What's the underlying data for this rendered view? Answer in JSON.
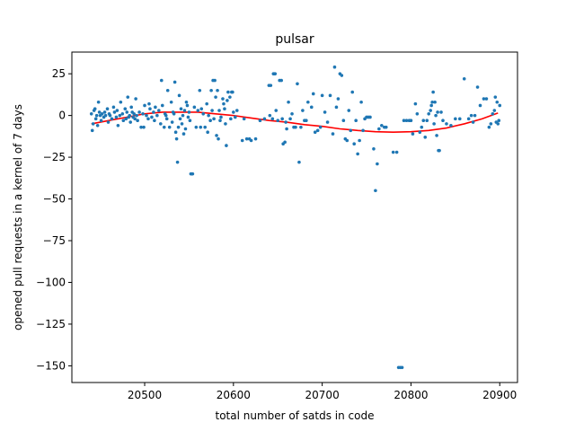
{
  "chart_data": {
    "type": "scatter",
    "title": "pulsar",
    "xlabel": "total number of satds in code",
    "ylabel": "opened pull requests in a kernel of 7 days",
    "xlim": [
      20418,
      20920
    ],
    "ylim": [
      -160,
      38
    ],
    "xticks": [
      20500,
      20600,
      20700,
      20800,
      20900
    ],
    "yticks": [
      25,
      0,
      -25,
      -50,
      -75,
      -100,
      -125,
      -150
    ],
    "grid": false,
    "point_color": "#1f77b4",
    "fit_color": "#ff0000",
    "points": [
      [
        20440,
        1
      ],
      [
        20441,
        -9
      ],
      [
        20442,
        -5
      ],
      [
        20443,
        3
      ],
      [
        20444,
        4
      ],
      [
        20445,
        -2
      ],
      [
        20446,
        0
      ],
      [
        20447,
        -6
      ],
      [
        20448,
        8
      ],
      [
        20449,
        2
      ],
      [
        20450,
        0
      ],
      [
        20451,
        -3
      ],
      [
        20452,
        1
      ],
      [
        20454,
        -1
      ],
      [
        20455,
        2
      ],
      [
        20456,
        0
      ],
      [
        20458,
        4
      ],
      [
        20459,
        -4
      ],
      [
        20460,
        1
      ],
      [
        20461,
        0
      ],
      [
        20463,
        -2
      ],
      [
        20465,
        5
      ],
      [
        20466,
        2
      ],
      [
        20468,
        -1
      ],
      [
        20469,
        3
      ],
      [
        20470,
        -6
      ],
      [
        20472,
        0
      ],
      [
        20473,
        8
      ],
      [
        20475,
        1
      ],
      [
        20476,
        -3
      ],
      [
        20478,
        4
      ],
      [
        20479,
        -2
      ],
      [
        20480,
        2
      ],
      [
        20481,
        11
      ],
      [
        20482,
        -1
      ],
      [
        20483,
        0
      ],
      [
        20484,
        -4
      ],
      [
        20485,
        5
      ],
      [
        20486,
        2
      ],
      [
        20487,
        -1
      ],
      [
        20488,
        1
      ],
      [
        20489,
        -2
      ],
      [
        20490,
        10
      ],
      [
        20491,
        0
      ],
      [
        20492,
        -3
      ],
      [
        20494,
        2
      ],
      [
        20496,
        -7
      ],
      [
        20498,
        1
      ],
      [
        20499,
        -7
      ],
      [
        20500,
        6
      ],
      [
        20502,
        0
      ],
      [
        20504,
        -2
      ],
      [
        20505,
        7
      ],
      [
        20506,
        4
      ],
      [
        20508,
        -1
      ],
      [
        20510,
        2
      ],
      [
        20511,
        -3
      ],
      [
        20512,
        5
      ],
      [
        20514,
        0
      ],
      [
        20516,
        3
      ],
      [
        20518,
        -5
      ],
      [
        20519,
        21
      ],
      [
        20520,
        6
      ],
      [
        20522,
        -7
      ],
      [
        20523,
        1
      ],
      [
        20524,
        0
      ],
      [
        20525,
        -2
      ],
      [
        20526,
        15
      ],
      [
        20528,
        -7
      ],
      [
        20530,
        8
      ],
      [
        20531,
        -4
      ],
      [
        20532,
        2
      ],
      [
        20533,
        1
      ],
      [
        20534,
        20
      ],
      [
        20535,
        -10
      ],
      [
        20536,
        -14
      ],
      [
        20537,
        -28
      ],
      [
        20538,
        -7
      ],
      [
        20539,
        12
      ],
      [
        20540,
        -2
      ],
      [
        20541,
        4
      ],
      [
        20542,
        -5
      ],
      [
        20543,
        0
      ],
      [
        20544,
        -11
      ],
      [
        20545,
        3
      ],
      [
        20546,
        -8
      ],
      [
        20547,
        8
      ],
      [
        20548,
        6
      ],
      [
        20549,
        -1
      ],
      [
        20550,
        2
      ],
      [
        20551,
        -3
      ],
      [
        20552,
        -35
      ],
      [
        20553,
        -35
      ],
      [
        20554,
        -35
      ],
      [
        20556,
        5
      ],
      [
        20558,
        -7
      ],
      [
        20560,
        3
      ],
      [
        20562,
        15
      ],
      [
        20563,
        -7
      ],
      [
        20564,
        4
      ],
      [
        20566,
        1
      ],
      [
        20568,
        -7
      ],
      [
        20570,
        7
      ],
      [
        20571,
        -10
      ],
      [
        20572,
        0
      ],
      [
        20574,
        -3
      ],
      [
        20575,
        15
      ],
      [
        20576,
        3
      ],
      [
        20577,
        21
      ],
      [
        20578,
        -2
      ],
      [
        20579,
        21
      ],
      [
        20580,
        11
      ],
      [
        20581,
        -12
      ],
      [
        20582,
        15
      ],
      [
        20583,
        -14
      ],
      [
        20584,
        3
      ],
      [
        20585,
        -3
      ],
      [
        20586,
        -1
      ],
      [
        20588,
        10
      ],
      [
        20589,
        7
      ],
      [
        20590,
        4
      ],
      [
        20591,
        -5
      ],
      [
        20592,
        -18
      ],
      [
        20593,
        9
      ],
      [
        20594,
        14
      ],
      [
        20596,
        11
      ],
      [
        20597,
        -2
      ],
      [
        20598,
        14
      ],
      [
        20599,
        14
      ],
      [
        20600,
        2
      ],
      [
        20602,
        -1
      ],
      [
        20604,
        3
      ],
      [
        20610,
        -15
      ],
      [
        20612,
        -2
      ],
      [
        20615,
        -14
      ],
      [
        20618,
        -14
      ],
      [
        20620,
        -15
      ],
      [
        20625,
        -14
      ],
      [
        20630,
        -3
      ],
      [
        20635,
        -2
      ],
      [
        20640,
        18
      ],
      [
        20641,
        0
      ],
      [
        20642,
        18
      ],
      [
        20644,
        -2
      ],
      [
        20645,
        25
      ],
      [
        20646,
        25
      ],
      [
        20647,
        25
      ],
      [
        20648,
        3
      ],
      [
        20650,
        -3
      ],
      [
        20652,
        21
      ],
      [
        20654,
        21
      ],
      [
        20655,
        -2
      ],
      [
        20656,
        -17
      ],
      [
        20658,
        -16
      ],
      [
        20659,
        -4
      ],
      [
        20660,
        -8
      ],
      [
        20662,
        8
      ],
      [
        20664,
        -2
      ],
      [
        20666,
        1
      ],
      [
        20668,
        -7
      ],
      [
        20670,
        -7
      ],
      [
        20672,
        19
      ],
      [
        20674,
        -28
      ],
      [
        20676,
        -7
      ],
      [
        20678,
        3
      ],
      [
        20680,
        -3
      ],
      [
        20682,
        -3
      ],
      [
        20684,
        8
      ],
      [
        20688,
        5
      ],
      [
        20690,
        13
      ],
      [
        20692,
        -10
      ],
      [
        20695,
        -9
      ],
      [
        20698,
        -7
      ],
      [
        20700,
        12
      ],
      [
        20703,
        2
      ],
      [
        20706,
        -4
      ],
      [
        20709,
        12
      ],
      [
        20712,
        -11
      ],
      [
        20714,
        29
      ],
      [
        20716,
        5
      ],
      [
        20718,
        10
      ],
      [
        20720,
        25
      ],
      [
        20722,
        24
      ],
      [
        20724,
        -3
      ],
      [
        20726,
        -14
      ],
      [
        20728,
        -15
      ],
      [
        20730,
        3
      ],
      [
        20732,
        -9
      ],
      [
        20734,
        14
      ],
      [
        20736,
        -17
      ],
      [
        20738,
        -3
      ],
      [
        20740,
        -23
      ],
      [
        20742,
        -15
      ],
      [
        20744,
        8
      ],
      [
        20746,
        -9
      ],
      [
        20748,
        -2
      ],
      [
        20750,
        -1
      ],
      [
        20752,
        -1
      ],
      [
        20754,
        -1
      ],
      [
        20758,
        -20
      ],
      [
        20760,
        -45
      ],
      [
        20762,
        -29
      ],
      [
        20764,
        -8
      ],
      [
        20767,
        -6
      ],
      [
        20770,
        -7
      ],
      [
        20772,
        -7
      ],
      [
        20780,
        -22
      ],
      [
        20784,
        -22
      ],
      [
        20786,
        -151
      ],
      [
        20788,
        -151
      ],
      [
        20790,
        -151
      ],
      [
        20792,
        -3
      ],
      [
        20795,
        -3
      ],
      [
        20798,
        -3
      ],
      [
        20800,
        -3
      ],
      [
        20802,
        -11
      ],
      [
        20805,
        7
      ],
      [
        20807,
        1
      ],
      [
        20810,
        -10
      ],
      [
        20812,
        -7
      ],
      [
        20814,
        -3
      ],
      [
        20816,
        -13
      ],
      [
        20818,
        -3
      ],
      [
        20820,
        1
      ],
      [
        20822,
        3
      ],
      [
        20823,
        6
      ],
      [
        20824,
        8
      ],
      [
        20825,
        14
      ],
      [
        20826,
        -5
      ],
      [
        20827,
        8
      ],
      [
        20828,
        0
      ],
      [
        20829,
        -12
      ],
      [
        20830,
        2
      ],
      [
        20831,
        -21
      ],
      [
        20832,
        -21
      ],
      [
        20834,
        2
      ],
      [
        20836,
        -3
      ],
      [
        20840,
        -5
      ],
      [
        20845,
        -6
      ],
      [
        20850,
        -2
      ],
      [
        20855,
        -2
      ],
      [
        20860,
        22
      ],
      [
        20865,
        -2
      ],
      [
        20868,
        0
      ],
      [
        20870,
        -4
      ],
      [
        20872,
        0
      ],
      [
        20875,
        17
      ],
      [
        20878,
        6
      ],
      [
        20882,
        10
      ],
      [
        20885,
        10
      ],
      [
        20888,
        -7
      ],
      [
        20890,
        -5
      ],
      [
        20892,
        1
      ],
      [
        20894,
        3
      ],
      [
        20895,
        11
      ],
      [
        20896,
        -4
      ],
      [
        20897,
        8
      ],
      [
        20898,
        -5
      ],
      [
        20899,
        -3
      ],
      [
        20900,
        6
      ]
    ],
    "fit_curve": [
      [
        20440,
        -5
      ],
      [
        20460,
        -3
      ],
      [
        20480,
        -1
      ],
      [
        20500,
        1
      ],
      [
        20520,
        2
      ],
      [
        20540,
        2
      ],
      [
        20560,
        2
      ],
      [
        20580,
        1
      ],
      [
        20600,
        0
      ],
      [
        20620,
        -1.5
      ],
      [
        20640,
        -3
      ],
      [
        20660,
        -4
      ],
      [
        20680,
        -5.5
      ],
      [
        20700,
        -6.5
      ],
      [
        20720,
        -8
      ],
      [
        20740,
        -9
      ],
      [
        20760,
        -9.7
      ],
      [
        20780,
        -10
      ],
      [
        20800,
        -9.7
      ],
      [
        20820,
        -9
      ],
      [
        20840,
        -7.5
      ],
      [
        20860,
        -5
      ],
      [
        20880,
        -2
      ],
      [
        20898,
        1.5
      ]
    ]
  }
}
